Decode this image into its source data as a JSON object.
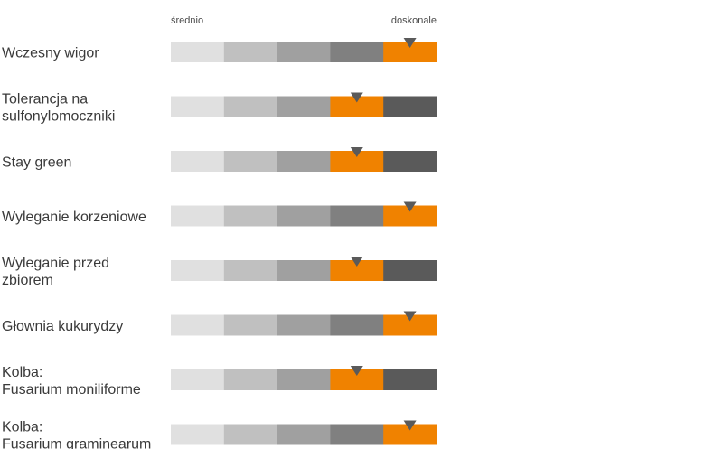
{
  "chart_data": {
    "type": "rating-scale",
    "scale_min_label": "średnio",
    "scale_max_label": "doskonale",
    "levels": 5,
    "colors": {
      "segments": [
        "#e0e0e0",
        "#c0c0c0",
        "#a0a0a0",
        "#808080",
        "#5a5a5a"
      ],
      "highlight": "#f08200",
      "marker": "#5a5a5a"
    },
    "traits": [
      {
        "lines": [
          "Wczesny wigor"
        ],
        "rating": 5
      },
      {
        "lines": [
          "Tolerancja na",
          "sulfonylomoczniki"
        ],
        "rating": 4
      },
      {
        "lines": [
          "Stay green"
        ],
        "rating": 4
      },
      {
        "lines": [
          "Wyleganie korzeniowe"
        ],
        "rating": 5
      },
      {
        "lines": [
          "Wyleganie przed",
          "zbiorem"
        ],
        "rating": 4
      },
      {
        "lines": [
          "Głownia kukurydzy"
        ],
        "rating": 5
      },
      {
        "lines": [
          "Kolba:",
          "Fusarium moniliforme"
        ],
        "rating": 4
      },
      {
        "lines": [
          "Kolba:",
          "Fusarium graminearum"
        ],
        "rating": 5
      }
    ]
  }
}
